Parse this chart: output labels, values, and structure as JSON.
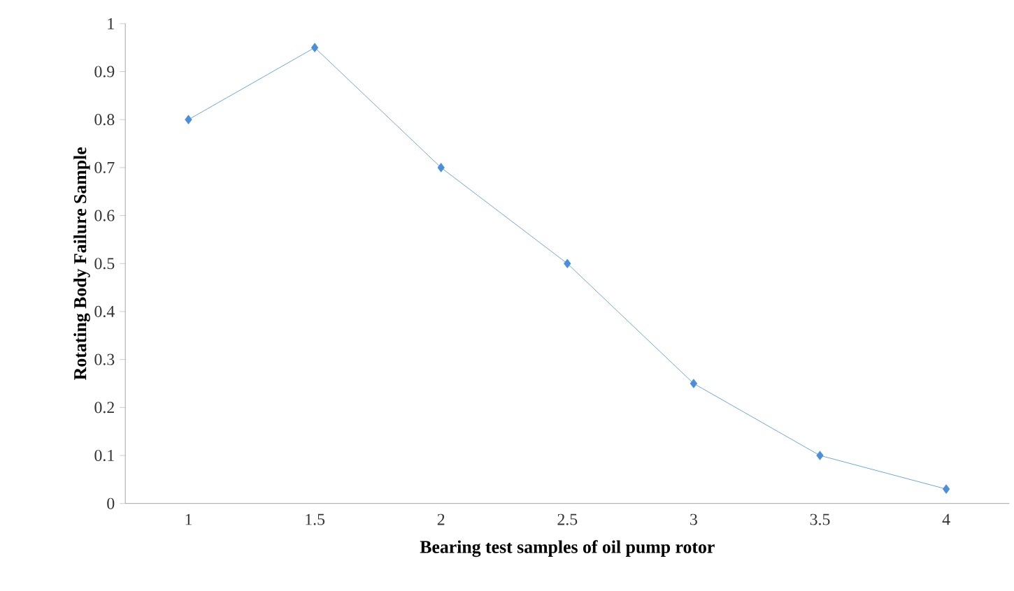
{
  "chart_data": {
    "type": "line",
    "xlabel": "Bearing test samples of oil pump rotor",
    "ylabel": "Rotating Body Failure Sample",
    "categories": [
      "1",
      "1.5",
      "2",
      "2.5",
      "3",
      "3.5",
      "4"
    ],
    "series": [
      {
        "color": "#4a8fd9",
        "values": [
          0.8,
          0.95,
          0.7,
          0.5,
          0.25,
          0.1,
          0.03
        ]
      }
    ],
    "ylim": [
      0,
      1
    ],
    "yticks": [
      0,
      0.1,
      0.2,
      0.3,
      0.4,
      0.5,
      0.6,
      0.7,
      0.8,
      0.9,
      1
    ],
    "marker": "diamond",
    "line_style": "solid",
    "grid": false,
    "legend": false
  }
}
